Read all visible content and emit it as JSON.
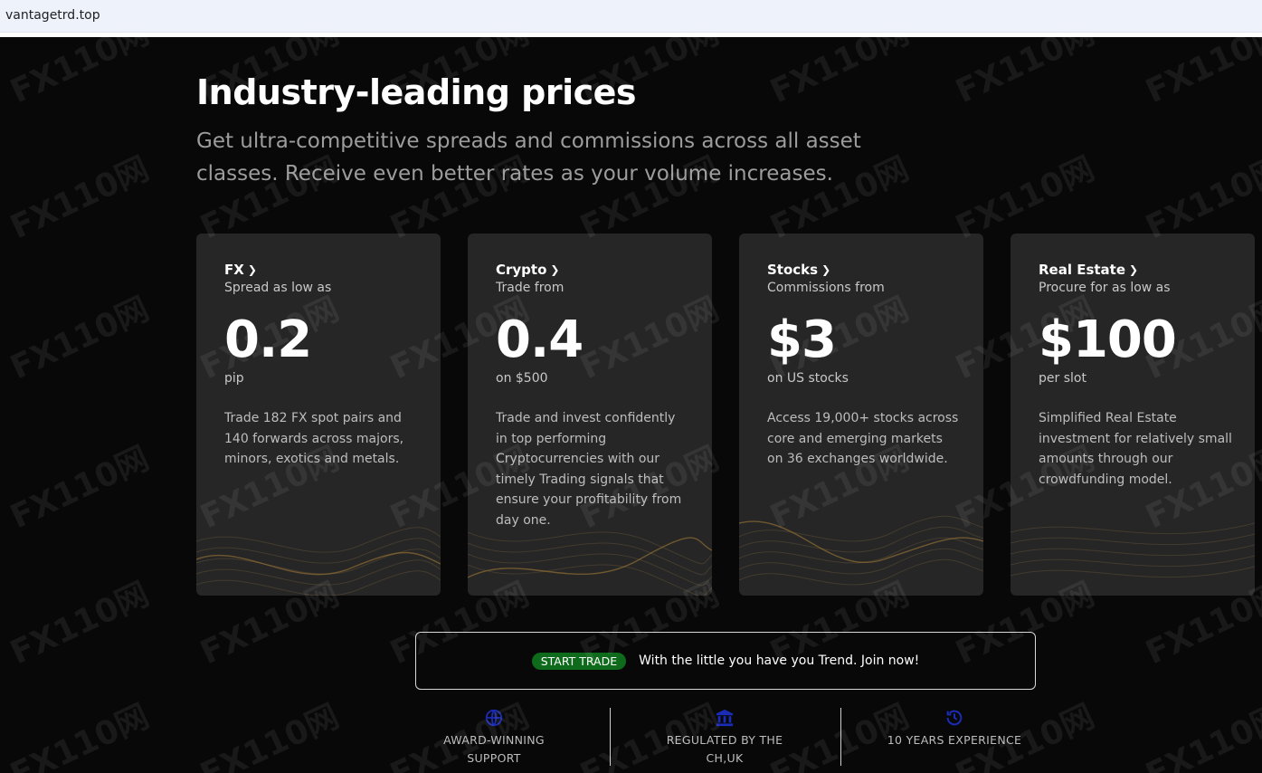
{
  "browser": {
    "url": "vantagetrd.top"
  },
  "hero": {
    "title": "Industry-leading prices",
    "subtitle": "Get ultra-competitive spreads and commissions across all asset classes. Receive even better rates as your volume increases."
  },
  "cards": [
    {
      "title": "FX",
      "sub": "Spread as low as",
      "big": "0.2",
      "unit": "pip",
      "desc": "Trade 182 FX spot pairs and 140 forwards across majors, minors, exotics and metals."
    },
    {
      "title": "Crypto",
      "sub": "Trade from",
      "big": "0.4",
      "unit": "on $500",
      "desc": "Trade and invest confidently in top performing Cryptocurrencies with our timely Trading signals that ensure your profitability from day one."
    },
    {
      "title": "Stocks",
      "sub": "Commissions from",
      "big": "$3",
      "unit": "on US stocks",
      "desc": "Access 19,000+ stocks across core and emerging markets on 36 exchanges worldwide."
    },
    {
      "title": "Real Estate",
      "sub": "Procure for as low as",
      "big": "$100",
      "unit": "per slot",
      "desc": "Simplified Real Estate investment for relatively small amounts through our crowdfunding model."
    }
  ],
  "cta": {
    "button": "START TRADE",
    "text": "With the little you have you Trend. Join now!"
  },
  "features": [
    {
      "line1": "AWARD-WINNING",
      "line2": "SUPPORT",
      "icon": "globe-icon"
    },
    {
      "line1": "REGULATED BY THE",
      "line2": "CH,UK",
      "icon": "bank-icon"
    },
    {
      "line1": "10 YEARS EXPERIENCE",
      "line2": "",
      "icon": "history-icon"
    }
  ],
  "watermark": "FX110网",
  "colors": {
    "background": "#080808",
    "card": "#262626",
    "cta_button": "#0e6b1b",
    "icon": "#1a2bb5"
  }
}
